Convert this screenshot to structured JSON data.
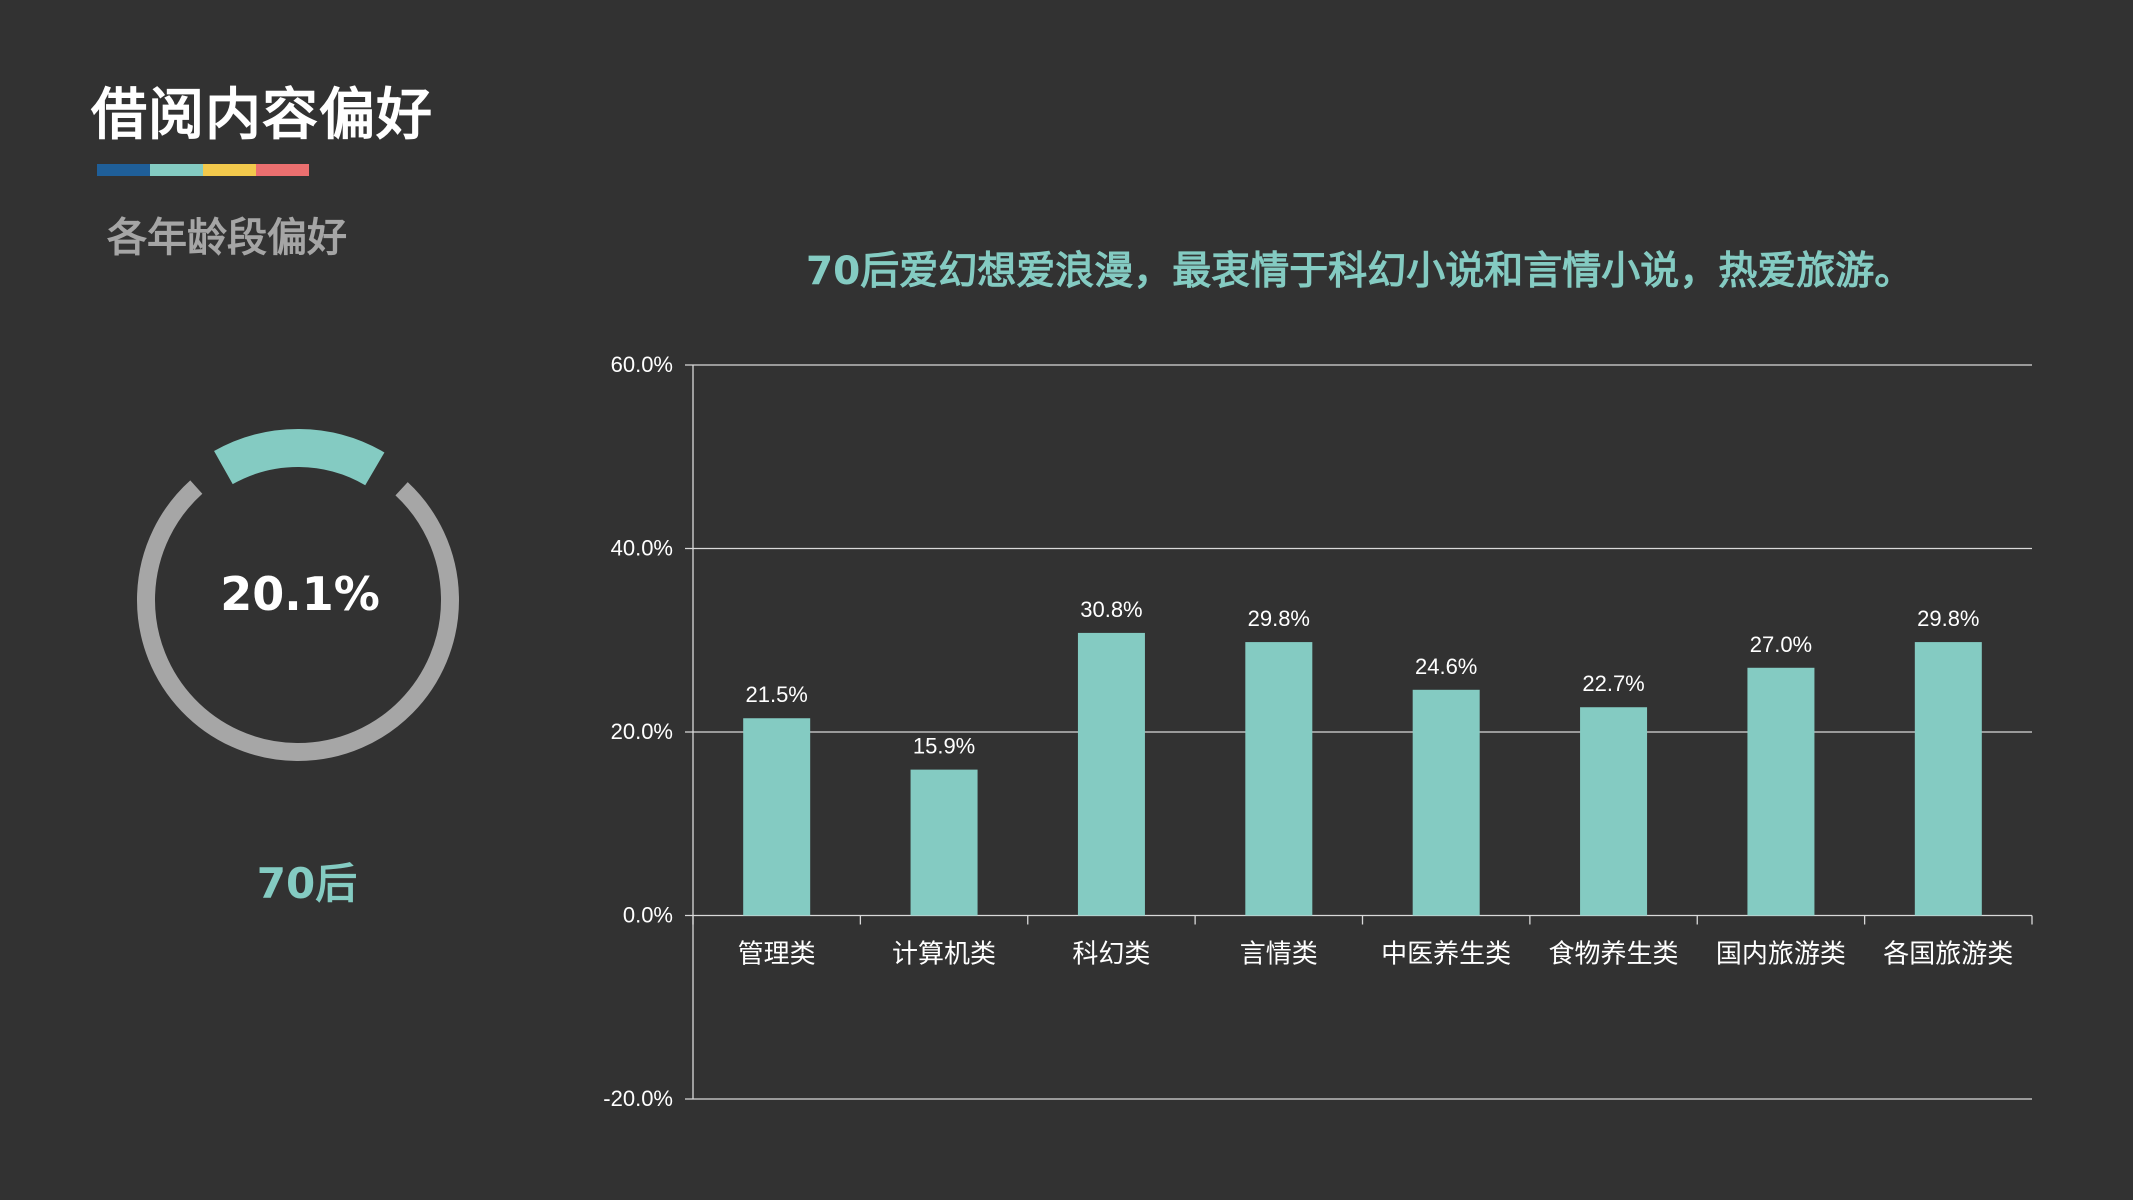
{
  "page": {
    "title": "借阅内容偏好",
    "subtitle": "各年龄段偏好",
    "headline": "70后爱幻想爱浪漫，最衷情于科幻小说和言情小说，热爱旅游。"
  },
  "colors": {
    "background": "#323232",
    "accent": "#84cbc2",
    "ring_gray": "#a6a6a6",
    "grid": "#d9d9d9",
    "title_bar": [
      "#1f5f99",
      "#84cbc2",
      "#f2c94c",
      "#eb6f6f"
    ]
  },
  "donut": {
    "value": "20.1%",
    "fraction": 0.201,
    "label": "70后"
  },
  "chart_data": {
    "type": "bar",
    "categories": [
      "管理类",
      "计算机类",
      "科幻类",
      "言情类",
      "中医养生类",
      "食物养生类",
      "国内旅游类",
      "各国旅游类"
    ],
    "values": [
      21.5,
      15.9,
      30.8,
      29.8,
      24.6,
      22.7,
      27.0,
      29.8
    ],
    "data_labels": [
      "21.5%",
      "15.9%",
      "30.8%",
      "29.8%",
      "24.6%",
      "22.7%",
      "27.0%",
      "29.8%"
    ],
    "ylim": [
      -20,
      60
    ],
    "yticks": [
      -20,
      0,
      20,
      40,
      60
    ],
    "ytick_labels": [
      "-20.0%",
      "0.0%",
      "20.0%",
      "40.0%",
      "60.0%"
    ],
    "grid": true,
    "title": "",
    "xlabel": "",
    "ylabel": ""
  }
}
